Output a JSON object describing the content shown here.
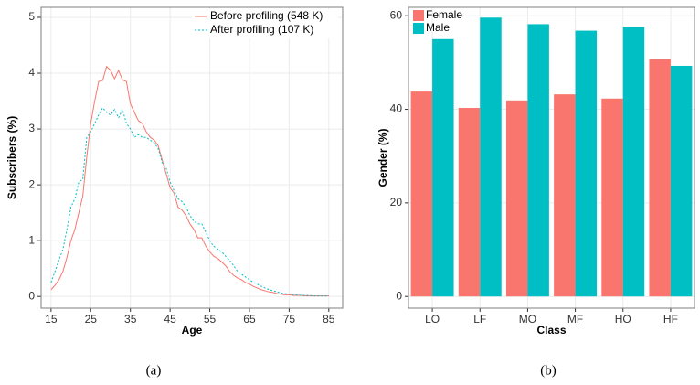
{
  "chart_data": [
    {
      "type": "line",
      "xlabel": "Age",
      "ylabel": "Subscribers (%)",
      "caption": "(a)",
      "x": [
        15,
        16,
        17,
        18,
        19,
        20,
        21,
        22,
        23,
        24,
        25,
        26,
        27,
        28,
        29,
        30,
        31,
        32,
        33,
        34,
        35,
        36,
        37,
        38,
        39,
        40,
        41,
        42,
        43,
        44,
        45,
        46,
        47,
        48,
        49,
        50,
        51,
        52,
        53,
        54,
        55,
        56,
        57,
        58,
        59,
        60,
        61,
        62,
        63,
        64,
        65,
        66,
        67,
        68,
        69,
        70,
        71,
        72,
        73,
        74,
        75,
        76,
        77,
        78,
        79,
        80,
        81,
        82,
        83,
        84,
        85
      ],
      "series": [
        {
          "name": "Before profiling (548 K)",
          "color": "#F8766D",
          "linestyle": "solid",
          "values": [
            0.12,
            0.2,
            0.3,
            0.45,
            0.7,
            1.0,
            1.2,
            1.5,
            1.8,
            2.5,
            3.1,
            3.5,
            3.85,
            3.87,
            4.12,
            4.05,
            3.9,
            4.05,
            3.88,
            3.85,
            3.45,
            3.3,
            3.15,
            3.1,
            2.95,
            2.85,
            2.8,
            2.7,
            2.45,
            2.2,
            1.95,
            1.85,
            1.6,
            1.55,
            1.45,
            1.3,
            1.2,
            1.05,
            1.05,
            0.9,
            0.8,
            0.72,
            0.68,
            0.62,
            0.55,
            0.45,
            0.38,
            0.33,
            0.3,
            0.25,
            0.22,
            0.18,
            0.15,
            0.12,
            0.1,
            0.08,
            0.07,
            0.05,
            0.04,
            0.03,
            0.03,
            0.02,
            0.02,
            0.02,
            0.01,
            0.01,
            0.01,
            0.01,
            0.01,
            0.01,
            0.01
          ]
        },
        {
          "name": "After profiling (107 K)",
          "color": "#00BFC4",
          "linestyle": "dotted",
          "values": [
            0.25,
            0.45,
            0.65,
            0.85,
            1.2,
            1.6,
            1.75,
            2.05,
            2.1,
            2.85,
            2.95,
            3.1,
            3.25,
            3.38,
            3.3,
            3.25,
            3.35,
            3.2,
            3.35,
            3.1,
            3.0,
            2.85,
            2.9,
            2.85,
            2.85,
            2.8,
            2.75,
            2.65,
            2.4,
            2.3,
            2.05,
            1.9,
            1.75,
            1.7,
            1.6,
            1.45,
            1.35,
            1.3,
            1.3,
            1.15,
            1.0,
            0.9,
            0.85,
            0.8,
            0.72,
            0.65,
            0.55,
            0.45,
            0.4,
            0.35,
            0.3,
            0.25,
            0.22,
            0.18,
            0.15,
            0.12,
            0.1,
            0.08,
            0.06,
            0.05,
            0.04,
            0.03,
            0.03,
            0.02,
            0.02,
            0.02,
            0.01,
            0.01,
            0.01,
            0.01,
            0.01
          ]
        }
      ],
      "xlim": [
        12.5,
        88.5
      ],
      "xticks": [
        15,
        25,
        35,
        45,
        55,
        65,
        75,
        85
      ],
      "ylim": [
        -0.21,
        5.18
      ],
      "yticks": [
        0,
        1,
        2,
        3,
        4,
        5
      ],
      "grid": true,
      "legend": "top-right"
    },
    {
      "type": "bar",
      "xlabel": "Class",
      "ylabel": "Gender (%)",
      "caption": "(b)",
      "categories": [
        "LO",
        "LF",
        "MO",
        "MF",
        "HO",
        "HF"
      ],
      "series": [
        {
          "name": "Female",
          "color": "#F8766D",
          "values": [
            43.8,
            40.3,
            41.9,
            43.2,
            42.3,
            50.8
          ]
        },
        {
          "name": "Male",
          "color": "#00BFC4",
          "values": [
            55.0,
            59.6,
            58.2,
            56.8,
            57.6,
            49.3
          ]
        }
      ],
      "ylim": [
        -2.5,
        61.8
      ],
      "yticks": [
        0,
        20,
        40,
        60
      ],
      "grid": true,
      "legend": "top-left"
    }
  ]
}
